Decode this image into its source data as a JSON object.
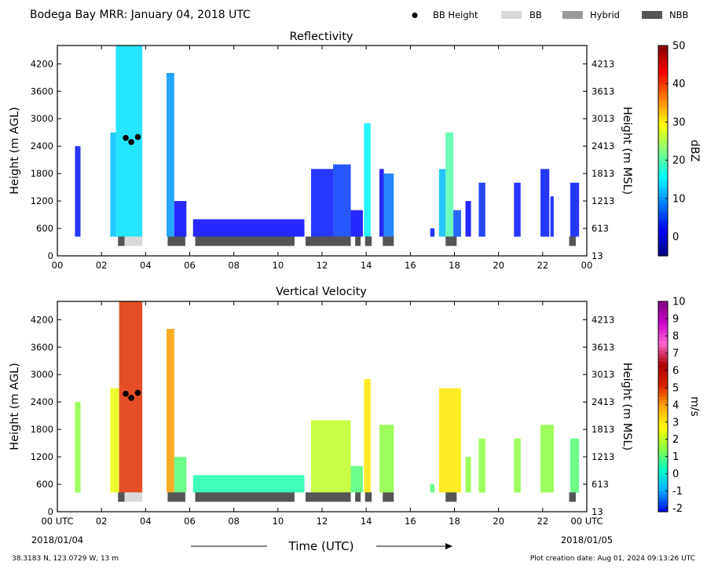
{
  "header": {
    "title": "Bodega Bay MRR:  January 04, 2018 UTC",
    "legend": [
      {
        "label": "BB Height",
        "kind": "dot",
        "color": "#000000"
      },
      {
        "label": "BB",
        "kind": "bar",
        "color": "#d9d9d9"
      },
      {
        "label": "Hybrid",
        "kind": "bar",
        "color": "#999999"
      },
      {
        "label": "NBB",
        "kind": "bar",
        "color": "#555555"
      }
    ]
  },
  "footer": {
    "location": "38.3183 N, 123.0729 W, 13 m",
    "creation": "Plot creation date: Aug 01, 2024 09:13:26 UTC",
    "xlabel": "Time (UTC)",
    "start_date": "2018/01/04",
    "end_date": "2018/01/05"
  },
  "chart_data": [
    {
      "type": "heatmap",
      "title": "Reflectivity",
      "ylabel": "Height (m AGL)",
      "ylabel_right": "Height (m MSL)",
      "x_ticks": [
        "00",
        "02",
        "04",
        "06",
        "08",
        "10",
        "12",
        "14",
        "16",
        "18",
        "20",
        "22",
        "00"
      ],
      "xlim": [
        0,
        24
      ],
      "ylim": [
        0,
        4600
      ],
      "y_ticks_left": [
        "0",
        "600",
        "1200",
        "1800",
        "2400",
        "3000",
        "3600",
        "4200"
      ],
      "y_ticks_right": [
        "13",
        "613",
        "1213",
        "1813",
        "2413",
        "3013",
        "3613",
        "4213"
      ],
      "colorbar": {
        "label": "dBZ",
        "min": -5,
        "max": 50,
        "ticks": [
          0,
          10,
          20,
          30,
          40,
          50
        ],
        "stops": [
          "#00007f",
          "#0000ff",
          "#007fff",
          "#00ffff",
          "#7fff7f",
          "#ffff00",
          "#ff7f00",
          "#ff0000",
          "#7f0000"
        ]
      },
      "echo_columns": [
        {
          "start": 0.8,
          "end": 1.05,
          "top": 2400,
          "value": 3
        },
        {
          "start": 2.4,
          "end": 2.65,
          "top": 2700,
          "value": 12
        },
        {
          "start": 2.65,
          "end": 3.85,
          "top": 4600,
          "value": 14
        },
        {
          "start": 4.95,
          "end": 5.3,
          "top": 4000,
          "value": 10
        },
        {
          "start": 5.3,
          "end": 5.85,
          "top": 1200,
          "value": 2
        },
        {
          "start": 6.15,
          "end": 11.2,
          "top": 800,
          "value": 2
        },
        {
          "start": 11.5,
          "end": 12.5,
          "top": 1900,
          "value": 3
        },
        {
          "start": 12.5,
          "end": 13.3,
          "top": 2000,
          "value": 5
        },
        {
          "start": 13.3,
          "end": 13.85,
          "top": 1000,
          "value": 2
        },
        {
          "start": 13.9,
          "end": 14.2,
          "top": 2900,
          "value": 15
        },
        {
          "start": 14.6,
          "end": 14.8,
          "top": 1900,
          "value": 2
        },
        {
          "start": 14.8,
          "end": 15.25,
          "top": 1800,
          "value": 8
        },
        {
          "start": 16.9,
          "end": 17.1,
          "top": 600,
          "value": 3
        },
        {
          "start": 17.3,
          "end": 17.6,
          "top": 1900,
          "value": 12
        },
        {
          "start": 17.6,
          "end": 17.95,
          "top": 2700,
          "value": 20
        },
        {
          "start": 17.95,
          "end": 18.3,
          "top": 1000,
          "value": 6
        },
        {
          "start": 18.5,
          "end": 18.75,
          "top": 1200,
          "value": 2
        },
        {
          "start": 19.1,
          "end": 19.4,
          "top": 1600,
          "value": 4
        },
        {
          "start": 20.7,
          "end": 21.0,
          "top": 1600,
          "value": 3
        },
        {
          "start": 21.9,
          "end": 22.3,
          "top": 1900,
          "value": 3
        },
        {
          "start": 22.35,
          "end": 22.5,
          "top": 1300,
          "value": 3
        },
        {
          "start": 23.25,
          "end": 23.65,
          "top": 1600,
          "value": 3
        }
      ],
      "bb_heights": [
        {
          "time": 3.1,
          "height": 2580
        },
        {
          "time": 3.35,
          "height": 2490
        },
        {
          "time": 3.65,
          "height": 2600
        }
      ],
      "bb_periods": [
        {
          "start": 2.75,
          "end": 3.05,
          "type": "NBB"
        },
        {
          "start": 3.05,
          "end": 3.85,
          "type": "BB"
        },
        {
          "start": 5.0,
          "end": 5.8,
          "type": "NBB"
        },
        {
          "start": 6.25,
          "end": 10.75,
          "type": "NBB"
        },
        {
          "start": 11.25,
          "end": 13.3,
          "type": "NBB"
        },
        {
          "start": 13.5,
          "end": 13.75,
          "type": "NBB"
        },
        {
          "start": 13.95,
          "end": 14.25,
          "type": "NBB"
        },
        {
          "start": 14.75,
          "end": 15.25,
          "type": "NBB"
        },
        {
          "start": 17.6,
          "end": 18.1,
          "type": "NBB"
        },
        {
          "start": 23.2,
          "end": 23.5,
          "type": "NBB"
        }
      ]
    },
    {
      "type": "heatmap",
      "title": "Vertical Velocity",
      "ylabel": "Height (m AGL)",
      "ylabel_right": "Height (m MSL)",
      "x_ticks": [
        "00 UTC",
        "02",
        "04",
        "06",
        "08",
        "10",
        "12",
        "14",
        "16",
        "18",
        "20",
        "22",
        "00 UTC"
      ],
      "xlim": [
        0,
        24
      ],
      "ylim": [
        0,
        4600
      ],
      "y_ticks_left": [
        "0",
        "600",
        "1200",
        "1800",
        "2400",
        "3000",
        "3600",
        "4200"
      ],
      "y_ticks_right": [
        "13",
        "613",
        "1213",
        "1813",
        "2413",
        "3013",
        "3613",
        "4213"
      ],
      "colorbar": {
        "label": "m/s",
        "min": -2.2,
        "max": 10,
        "ticks": [
          -2,
          -1,
          0,
          1,
          2,
          3,
          4,
          5,
          6,
          7,
          8,
          9,
          10
        ],
        "stops": [
          "#0000ff",
          "#00aaff",
          "#00ffcc",
          "#88ff44",
          "#ffff00",
          "#ffaa00",
          "#dd2200",
          "#aa0000",
          "#ff66cc",
          "#cc00cc",
          "#800080"
        ]
      },
      "echo_columns": [
        {
          "start": 0.8,
          "end": 1.05,
          "top": 2400,
          "value": 1.5
        },
        {
          "start": 2.4,
          "end": 2.8,
          "top": 2700,
          "value": 2.5
        },
        {
          "start": 2.8,
          "end": 3.85,
          "top": 4600,
          "value": 5
        },
        {
          "start": 4.95,
          "end": 5.3,
          "top": 4000,
          "value": 4
        },
        {
          "start": 5.3,
          "end": 5.85,
          "top": 1200,
          "value": 1
        },
        {
          "start": 6.15,
          "end": 11.2,
          "top": 800,
          "value": 0.5
        },
        {
          "start": 11.5,
          "end": 13.3,
          "top": 2000,
          "value": 2
        },
        {
          "start": 13.3,
          "end": 13.85,
          "top": 1000,
          "value": 1
        },
        {
          "start": 13.9,
          "end": 14.2,
          "top": 2900,
          "value": 3
        },
        {
          "start": 14.6,
          "end": 15.25,
          "top": 1900,
          "value": 1.5
        },
        {
          "start": 16.9,
          "end": 17.1,
          "top": 600,
          "value": 1
        },
        {
          "start": 17.3,
          "end": 18.3,
          "top": 2700,
          "value": 3
        },
        {
          "start": 18.5,
          "end": 18.75,
          "top": 1200,
          "value": 1.5
        },
        {
          "start": 19.1,
          "end": 19.4,
          "top": 1600,
          "value": 1.5
        },
        {
          "start": 20.7,
          "end": 21.0,
          "top": 1600,
          "value": 1.5
        },
        {
          "start": 21.9,
          "end": 22.5,
          "top": 1900,
          "value": 1.5
        },
        {
          "start": 23.25,
          "end": 23.65,
          "top": 1600,
          "value": 1
        }
      ],
      "bb_heights": [
        {
          "time": 3.1,
          "height": 2580
        },
        {
          "time": 3.35,
          "height": 2490
        },
        {
          "time": 3.65,
          "height": 2600
        }
      ],
      "bb_periods": [
        {
          "start": 2.75,
          "end": 3.05,
          "type": "NBB"
        },
        {
          "start": 3.05,
          "end": 3.85,
          "type": "BB"
        },
        {
          "start": 5.0,
          "end": 5.8,
          "type": "NBB"
        },
        {
          "start": 6.25,
          "end": 10.75,
          "type": "NBB"
        },
        {
          "start": 11.25,
          "end": 13.3,
          "type": "NBB"
        },
        {
          "start": 13.5,
          "end": 13.75,
          "type": "NBB"
        },
        {
          "start": 13.95,
          "end": 14.25,
          "type": "NBB"
        },
        {
          "start": 14.75,
          "end": 15.25,
          "type": "NBB"
        },
        {
          "start": 17.6,
          "end": 18.1,
          "type": "NBB"
        },
        {
          "start": 23.2,
          "end": 23.5,
          "type": "NBB"
        }
      ]
    }
  ]
}
